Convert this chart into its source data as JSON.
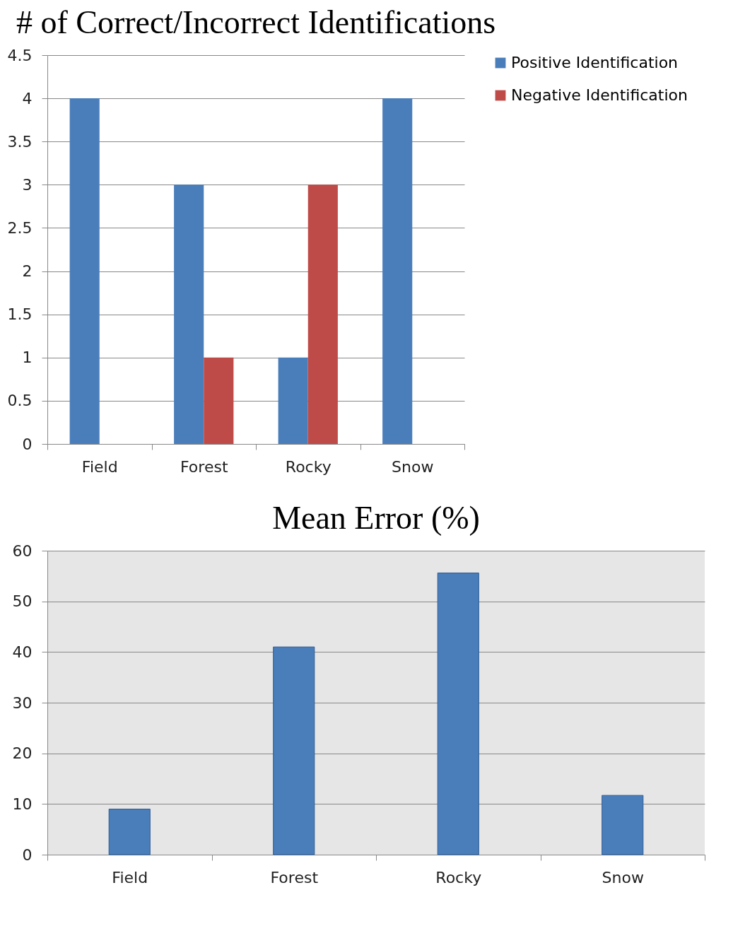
{
  "chart_data": [
    {
      "type": "bar",
      "title": "# of Correct/Incorrect Identifications",
      "categories": [
        "Field",
        "Forest",
        "Rocky",
        "Snow"
      ],
      "series": [
        {
          "name": "Positive Identification",
          "color": "#4a7ebb",
          "values": [
            4,
            3,
            1,
            4
          ]
        },
        {
          "name": "Negative Identification",
          "color": "#be4b48",
          "values": [
            0,
            1,
            3,
            0
          ]
        }
      ],
      "ylim": [
        0,
        4.5
      ],
      "yticks": [
        0,
        0.5,
        1,
        1.5,
        2,
        2.5,
        3,
        3.5,
        4,
        4.5
      ],
      "grid": "y",
      "legend": "right"
    },
    {
      "type": "bar",
      "title": "Mean Error (%)",
      "categories": [
        "Field",
        "Forest",
        "Rocky",
        "Snow"
      ],
      "values": [
        9,
        41,
        55.6,
        11.7
      ],
      "color": "#4a7ebb",
      "ylim": [
        0,
        60
      ],
      "yticks": [
        0,
        10,
        20,
        30,
        40,
        50,
        60
      ],
      "grid": "y"
    }
  ]
}
